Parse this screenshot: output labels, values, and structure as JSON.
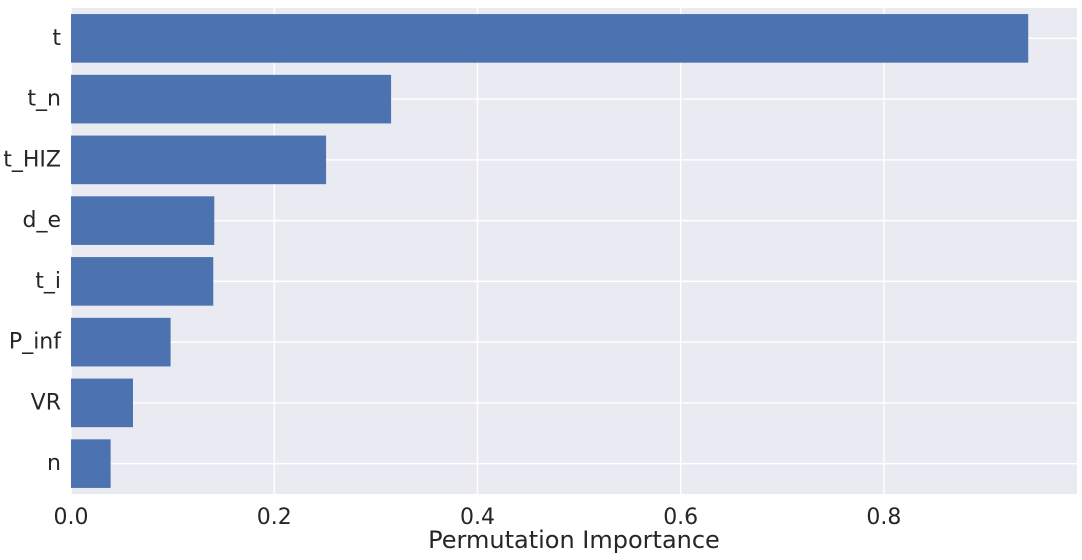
{
  "chart_data": {
    "type": "bar",
    "orientation": "horizontal",
    "title": "",
    "xlabel": "Permutation Importance",
    "ylabel": "",
    "categories": [
      "t",
      "t_n",
      "t_HIZ",
      "d_e",
      "t_i",
      "P_inf",
      "VR",
      "n"
    ],
    "values": [
      0.942,
      0.315,
      0.251,
      0.141,
      0.14,
      0.098,
      0.061,
      0.039
    ],
    "xlim": [
      0,
      0.99
    ],
    "xticks": [
      0.0,
      0.2,
      0.4,
      0.6,
      0.8
    ],
    "xtick_labels": [
      "0.0",
      "0.2",
      "0.4",
      "0.6",
      "0.8"
    ],
    "grid": true,
    "colors": {
      "bar": "#4c72b0",
      "background": "#eaeaf2",
      "grid": "#ffffff"
    }
  }
}
